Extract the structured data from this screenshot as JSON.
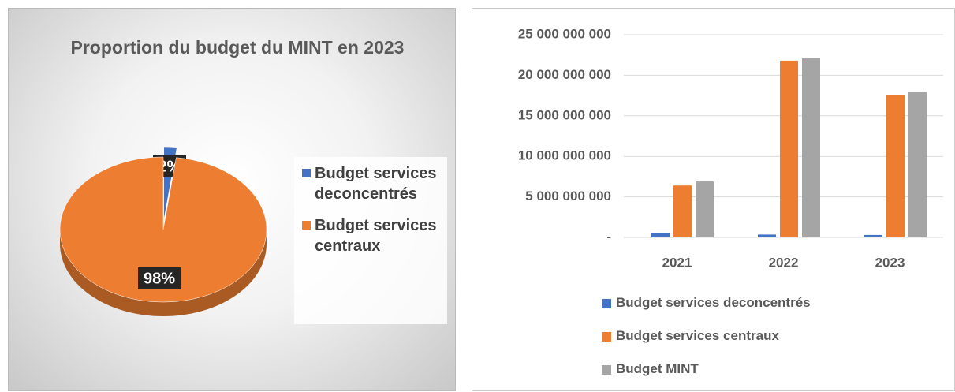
{
  "chart_data": [
    {
      "type": "pie",
      "title": "Proportion du budget du MINT en 2023",
      "categories": [
        "Budget services deconcentrés",
        "Budget services centraux"
      ],
      "values": [
        2,
        98
      ],
      "value_labels": [
        "2%",
        "98%"
      ],
      "colors": [
        "#4472c4",
        "#ed7d31"
      ],
      "legend": "right"
    },
    {
      "type": "bar",
      "categories": [
        "2021",
        "2022",
        "2023"
      ],
      "series": [
        {
          "name": "Budget services deconcentrés",
          "color": "#4472c4",
          "values": [
            500000000,
            350000000,
            300000000
          ]
        },
        {
          "name": "Budget services centraux",
          "color": "#ed7d31",
          "values": [
            6400000000,
            21800000000,
            17600000000
          ]
        },
        {
          "name": "Budget MINT",
          "color": "#a5a5a5",
          "values": [
            6900000000,
            22100000000,
            17900000000
          ]
        }
      ],
      "ylim": [
        0,
        25000000000
      ],
      "yticks": [
        {
          "value": 0,
          "label": "-"
        },
        {
          "value": 5000000000,
          "label": "5 000 000 000"
        },
        {
          "value": 10000000000,
          "label": "10 000 000 000"
        },
        {
          "value": 15000000000,
          "label": "15 000 000 000"
        },
        {
          "value": 20000000000,
          "label": "20 000 000 000"
        },
        {
          "value": 25000000000,
          "label": "25 000 000 000"
        }
      ],
      "grid": true,
      "legend": "bottom"
    }
  ]
}
